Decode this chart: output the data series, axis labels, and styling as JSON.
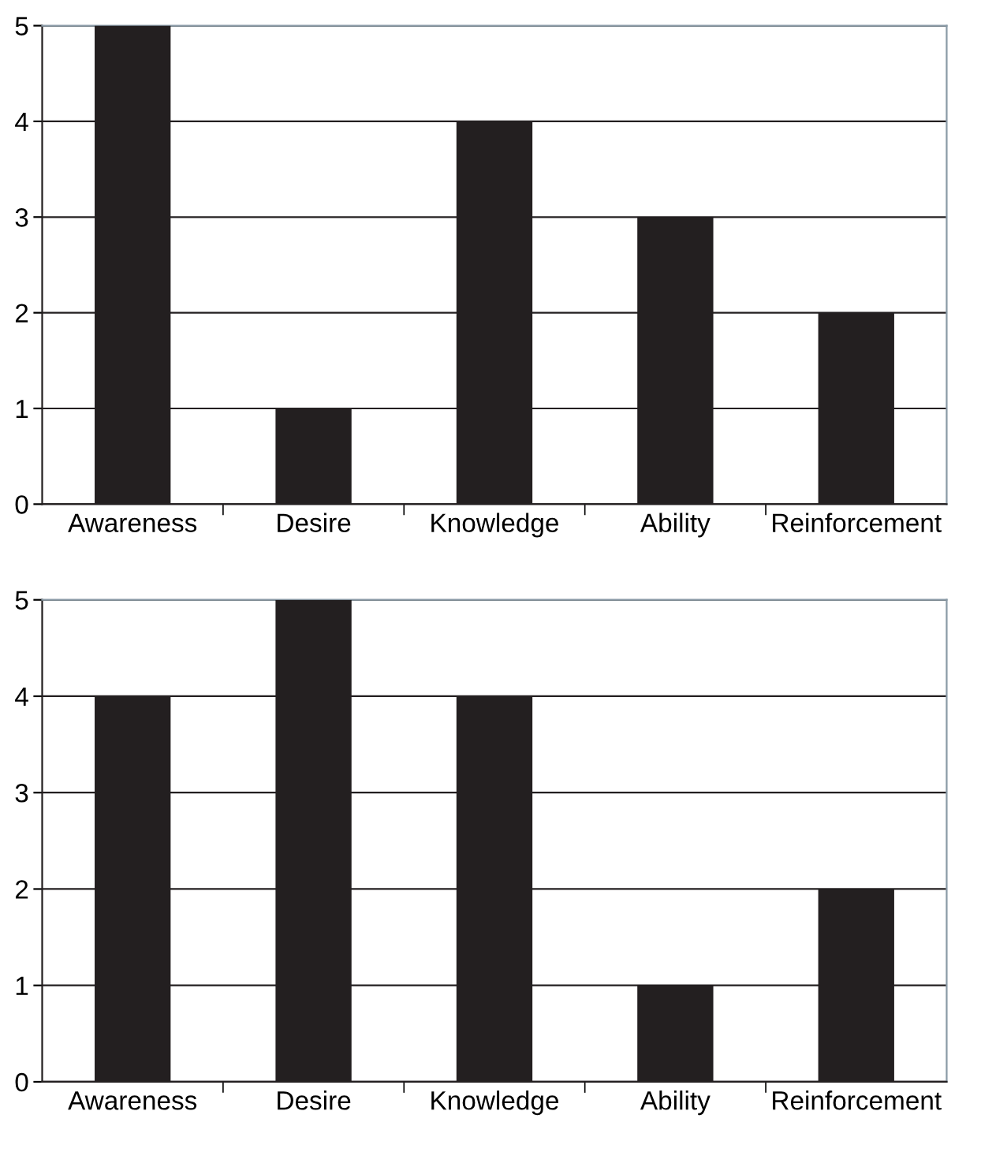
{
  "chart_data": [
    {
      "type": "bar",
      "categories": [
        "Awareness",
        "Desire",
        "Knowledge",
        "Ability",
        "Reinforcement"
      ],
      "values": [
        5,
        1,
        4,
        3,
        2
      ],
      "color": "#231f20",
      "ylim": [
        0,
        5
      ],
      "yticks": [
        0,
        1,
        2,
        3,
        4,
        5
      ],
      "grid": "y",
      "legend": false
    },
    {
      "type": "bar",
      "categories": [
        "Awareness",
        "Desire",
        "Knowledge",
        "Ability",
        "Reinforcement"
      ],
      "values": [
        4,
        5,
        4,
        1,
        2
      ],
      "color": "#231f20",
      "ylim": [
        0,
        5
      ],
      "yticks": [
        0,
        1,
        2,
        3,
        4,
        5
      ],
      "grid": "y",
      "legend": false
    }
  ]
}
